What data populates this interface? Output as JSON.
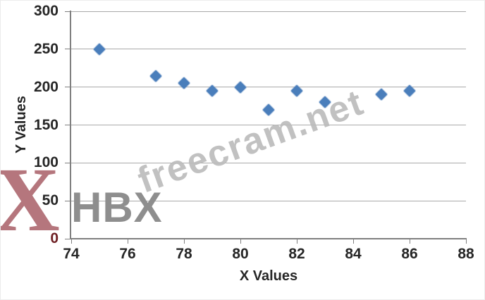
{
  "chart_data": {
    "type": "scatter",
    "title": "",
    "xlabel": "X Values",
    "ylabel": "Y Values",
    "x": [
      75,
      77,
      78,
      79,
      80,
      81,
      82,
      83,
      85,
      86
    ],
    "y": [
      250,
      215,
      205,
      195,
      200,
      170,
      195,
      180,
      190,
      195
    ],
    "xlim": [
      74,
      88
    ],
    "ylim": [
      0,
      300
    ],
    "x_ticks": [
      74,
      76,
      78,
      80,
      82,
      84,
      86,
      88
    ],
    "y_ticks": [
      0,
      50,
      100,
      150,
      200,
      250,
      300
    ],
    "grid": "horizontal",
    "legend": "none",
    "marker_shape": "diamond",
    "marker_color": "#4a7ebb"
  },
  "watermarks": {
    "site_text": "freecram.net",
    "brand_text": "HBX",
    "logo_letter": "X"
  },
  "colors": {
    "marker": "#4a7ebb",
    "gridline": "#a8a8a8",
    "axis": "#7f7f7f",
    "label_text": "#262626",
    "zero_label": "#6f2024",
    "watermark_site": "#bcbcbc",
    "watermark_brand": "#8e8e8e",
    "logo_red": "#b5767d"
  }
}
